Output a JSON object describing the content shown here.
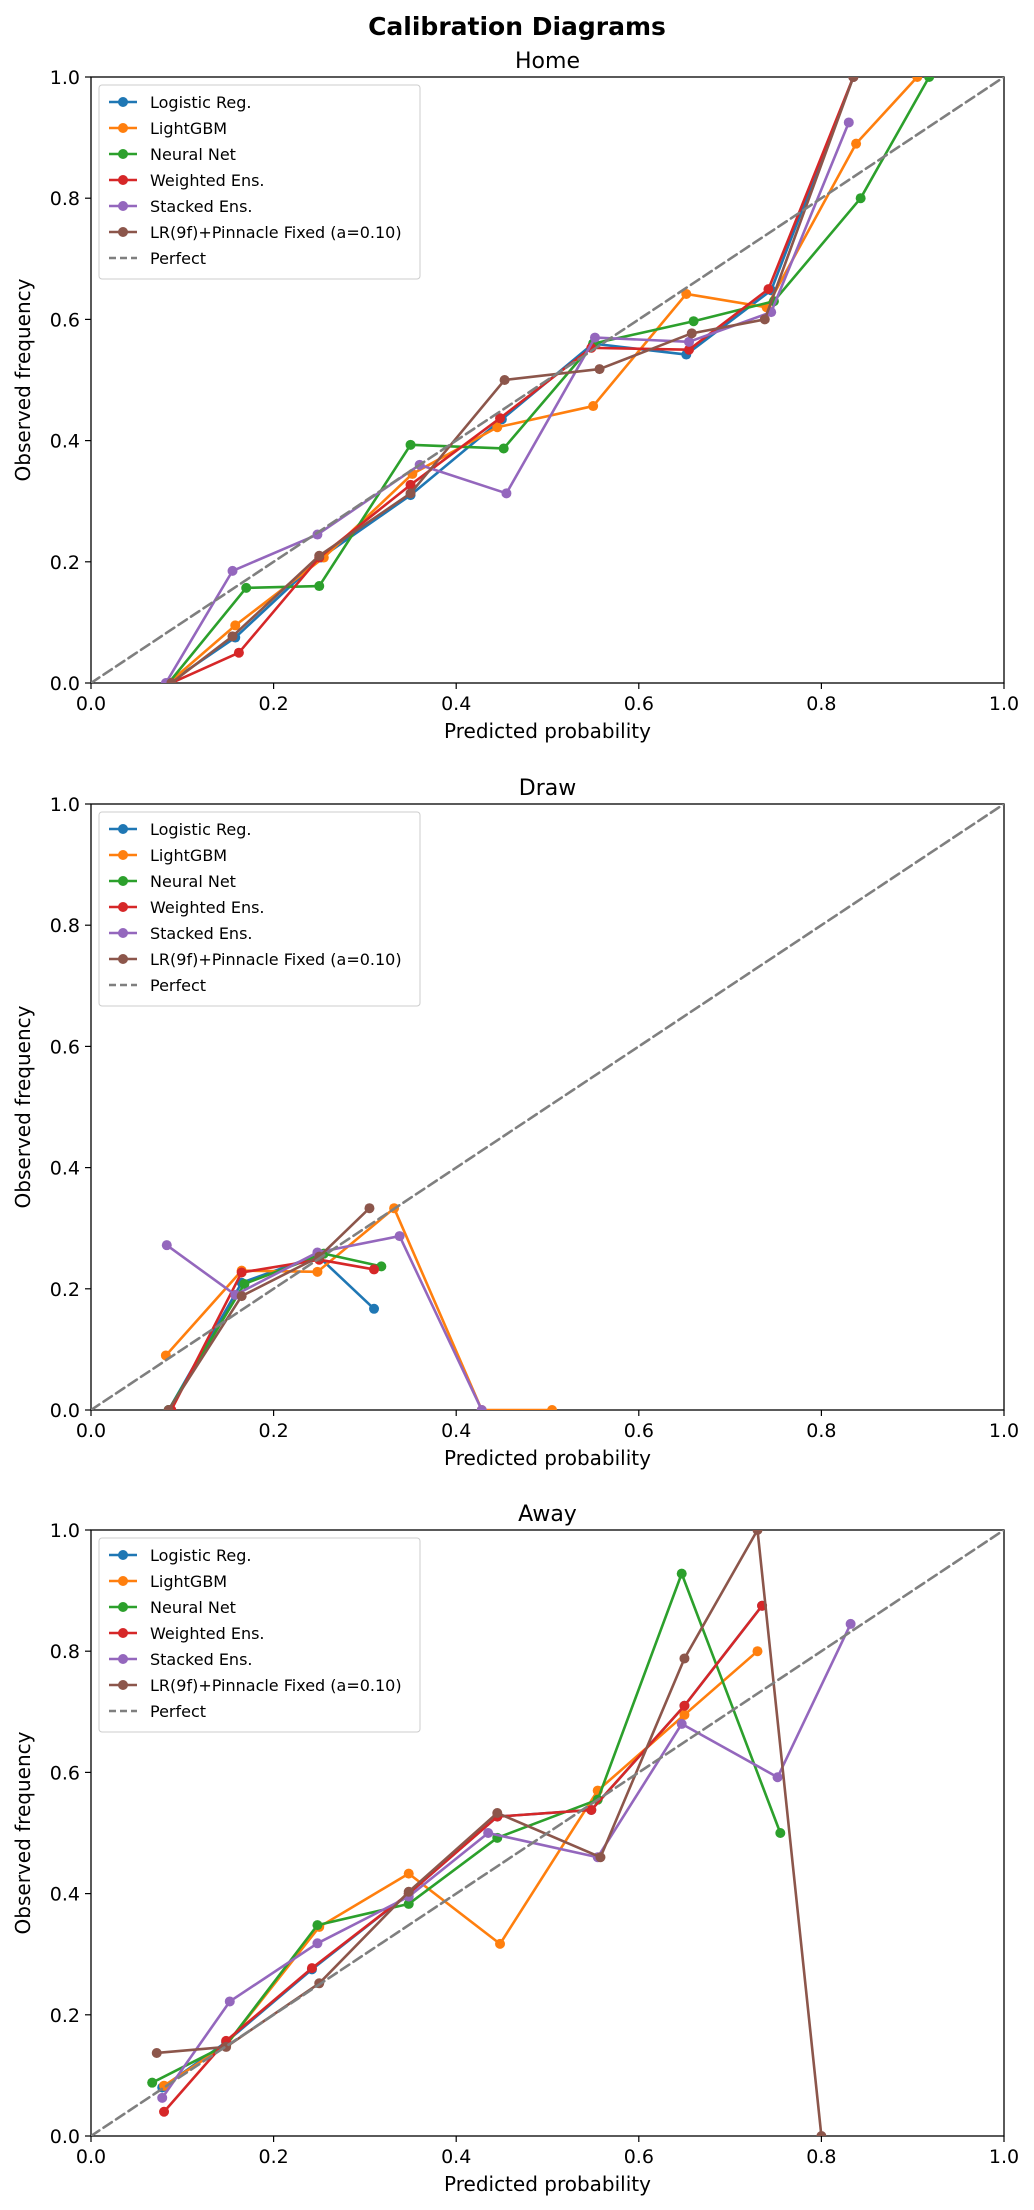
{
  "title": "Calibration Diagrams",
  "chart_data": [
    {
      "type": "line",
      "title": "Home",
      "xlabel": "Predicted probability",
      "ylabel": "Observed frequency",
      "xlim": [
        0,
        1
      ],
      "ylim": [
        0,
        1
      ],
      "xticks": [
        "0.0",
        "0.2",
        "0.4",
        "0.6",
        "0.8",
        "1.0"
      ],
      "yticks": [
        "0.0",
        "0.2",
        "0.4",
        "0.6",
        "0.8",
        "1.0"
      ],
      "grid": false,
      "legend_position": "upper-left",
      "series": [
        {
          "name": "Logistic Reg.",
          "color": "#1f77b4",
          "points": [
            [
              0.085,
              0.0
            ],
            [
              0.158,
              0.075
            ],
            [
              0.252,
              0.207
            ],
            [
              0.35,
              0.31
            ],
            [
              0.45,
              0.435
            ],
            [
              0.55,
              0.56
            ],
            [
              0.652,
              0.542
            ],
            [
              0.745,
              0.648
            ],
            [
              0.835,
              1.0
            ]
          ]
        },
        {
          "name": "LightGBM",
          "color": "#ff7f0e",
          "points": [
            [
              0.085,
              0.0
            ],
            [
              0.158,
              0.095
            ],
            [
              0.255,
              0.207
            ],
            [
              0.352,
              0.345
            ],
            [
              0.445,
              0.422
            ],
            [
              0.55,
              0.457
            ],
            [
              0.652,
              0.642
            ],
            [
              0.74,
              0.62
            ],
            [
              0.838,
              0.89
            ],
            [
              0.905,
              1.0
            ]
          ]
        },
        {
          "name": "Neural Net",
          "color": "#2ca02c",
          "points": [
            [
              0.085,
              0.0
            ],
            [
              0.17,
              0.157
            ],
            [
              0.25,
              0.16
            ],
            [
              0.35,
              0.393
            ],
            [
              0.452,
              0.387
            ],
            [
              0.55,
              0.56
            ],
            [
              0.66,
              0.597
            ],
            [
              0.748,
              0.63
            ],
            [
              0.843,
              0.8
            ],
            [
              0.918,
              1.0
            ]
          ]
        },
        {
          "name": "Weighted Ens.",
          "color": "#d62728",
          "points": [
            [
              0.088,
              0.0
            ],
            [
              0.162,
              0.05
            ],
            [
              0.25,
              0.207
            ],
            [
              0.35,
              0.327
            ],
            [
              0.448,
              0.437
            ],
            [
              0.548,
              0.553
            ],
            [
              0.655,
              0.55
            ],
            [
              0.742,
              0.65
            ],
            [
              0.835,
              1.0
            ]
          ]
        },
        {
          "name": "Stacked Ens.",
          "color": "#9467bd",
          "points": [
            [
              0.082,
              0.0
            ],
            [
              0.155,
              0.185
            ],
            [
              0.248,
              0.245
            ],
            [
              0.36,
              0.36
            ],
            [
              0.455,
              0.313
            ],
            [
              0.552,
              0.57
            ],
            [
              0.655,
              0.563
            ],
            [
              0.745,
              0.612
            ],
            [
              0.83,
              0.925
            ]
          ]
        },
        {
          "name": "LR(9f)+Pinnacle Fixed (a=0.10)",
          "color": "#8c564b",
          "points": [
            [
              0.088,
              0.0
            ],
            [
              0.155,
              0.077
            ],
            [
              0.25,
              0.21
            ],
            [
              0.35,
              0.313
            ],
            [
              0.453,
              0.5
            ],
            [
              0.557,
              0.518
            ],
            [
              0.658,
              0.577
            ],
            [
              0.738,
              0.6
            ],
            [
              0.835,
              1.0
            ]
          ]
        },
        {
          "name": "Perfect",
          "color": "#7f7f7f",
          "dashed": true,
          "markers": false,
          "points": [
            [
              0,
              0
            ],
            [
              1,
              1
            ]
          ]
        }
      ]
    },
    {
      "type": "line",
      "title": "Draw",
      "xlabel": "Predicted probability",
      "ylabel": "Observed frequency",
      "xlim": [
        0,
        1
      ],
      "ylim": [
        0,
        1
      ],
      "xticks": [
        "0.0",
        "0.2",
        "0.4",
        "0.6",
        "0.8",
        "1.0"
      ],
      "yticks": [
        "0.0",
        "0.2",
        "0.4",
        "0.6",
        "0.8",
        "1.0"
      ],
      "grid": false,
      "legend_position": "upper-left",
      "series": [
        {
          "name": "Logistic Reg.",
          "color": "#1f77b4",
          "points": [
            [
              0.085,
              0.0
            ],
            [
              0.165,
              0.21
            ],
            [
              0.248,
              0.255
            ],
            [
              0.31,
              0.167
            ]
          ]
        },
        {
          "name": "LightGBM",
          "color": "#ff7f0e",
          "points": [
            [
              0.082,
              0.09
            ],
            [
              0.165,
              0.23
            ],
            [
              0.248,
              0.228
            ],
            [
              0.332,
              0.333
            ],
            [
              0.428,
              0.0
            ],
            [
              0.505,
              0.0
            ]
          ]
        },
        {
          "name": "Neural Net",
          "color": "#2ca02c",
          "points": [
            [
              0.085,
              0.0
            ],
            [
              0.168,
              0.208
            ],
            [
              0.255,
              0.258
            ],
            [
              0.318,
              0.237
            ]
          ]
        },
        {
          "name": "Weighted Ens.",
          "color": "#d62728",
          "points": [
            [
              0.088,
              0.0
            ],
            [
              0.165,
              0.227
            ],
            [
              0.25,
              0.248
            ],
            [
              0.31,
              0.232
            ]
          ]
        },
        {
          "name": "Stacked Ens.",
          "color": "#9467bd",
          "points": [
            [
              0.083,
              0.272
            ],
            [
              0.158,
              0.19
            ],
            [
              0.248,
              0.26
            ],
            [
              0.338,
              0.287
            ],
            [
              0.428,
              0.0
            ]
          ]
        },
        {
          "name": "LR(9f)+Pinnacle Fixed (a=0.10)",
          "color": "#8c564b",
          "points": [
            [
              0.085,
              0.0
            ],
            [
              0.165,
              0.188
            ],
            [
              0.25,
              0.253
            ],
            [
              0.305,
              0.333
            ]
          ]
        },
        {
          "name": "Perfect",
          "color": "#7f7f7f",
          "dashed": true,
          "markers": false,
          "points": [
            [
              0,
              0
            ],
            [
              1,
              1
            ]
          ]
        }
      ]
    },
    {
      "type": "line",
      "title": "Away",
      "xlabel": "Predicted probability",
      "ylabel": "Observed frequency",
      "xlim": [
        0,
        1
      ],
      "ylim": [
        0,
        1
      ],
      "xticks": [
        "0.0",
        "0.2",
        "0.4",
        "0.6",
        "0.8",
        "1.0"
      ],
      "yticks": [
        "0.0",
        "0.2",
        "0.4",
        "0.6",
        "0.8",
        "1.0"
      ],
      "grid": false,
      "legend_position": "upper-left",
      "series": [
        {
          "name": "Logistic Reg.",
          "color": "#1f77b4",
          "points": [
            [
              0.078,
              0.08
            ],
            [
              0.148,
              0.155
            ],
            [
              0.242,
              0.275
            ],
            [
              0.348,
              0.4
            ],
            [
              0.445,
              0.527
            ],
            [
              0.548,
              0.538
            ],
            [
              0.65,
              0.71
            ],
            [
              0.735,
              0.875
            ]
          ]
        },
        {
          "name": "LightGBM",
          "color": "#ff7f0e",
          "points": [
            [
              0.08,
              0.083
            ],
            [
              0.148,
              0.15
            ],
            [
              0.25,
              0.345
            ],
            [
              0.348,
              0.433
            ],
            [
              0.448,
              0.317
            ],
            [
              0.555,
              0.57
            ],
            [
              0.65,
              0.695
            ],
            [
              0.73,
              0.8
            ]
          ]
        },
        {
          "name": "Neural Net",
          "color": "#2ca02c",
          "points": [
            [
              0.067,
              0.088
            ],
            [
              0.148,
              0.15
            ],
            [
              0.248,
              0.348
            ],
            [
              0.348,
              0.383
            ],
            [
              0.445,
              0.492
            ],
            [
              0.555,
              0.555
            ],
            [
              0.647,
              0.928
            ],
            [
              0.755,
              0.5
            ]
          ]
        },
        {
          "name": "Weighted Ens.",
          "color": "#d62728",
          "points": [
            [
              0.08,
              0.04
            ],
            [
              0.148,
              0.157
            ],
            [
              0.242,
              0.277
            ],
            [
              0.348,
              0.4
            ],
            [
              0.445,
              0.527
            ],
            [
              0.548,
              0.538
            ],
            [
              0.65,
              0.71
            ],
            [
              0.735,
              0.875
            ]
          ]
        },
        {
          "name": "Stacked Ens.",
          "color": "#9467bd",
          "points": [
            [
              0.078,
              0.063
            ],
            [
              0.152,
              0.222
            ],
            [
              0.248,
              0.318
            ],
            [
              0.348,
              0.395
            ],
            [
              0.435,
              0.5
            ],
            [
              0.555,
              0.46
            ],
            [
              0.647,
              0.68
            ],
            [
              0.752,
              0.592
            ],
            [
              0.832,
              0.845
            ]
          ]
        },
        {
          "name": "LR(9f)+Pinnacle Fixed (a=0.10)",
          "color": "#8c564b",
          "points": [
            [
              0.072,
              0.137
            ],
            [
              0.148,
              0.147
            ],
            [
              0.25,
              0.252
            ],
            [
              0.348,
              0.403
            ],
            [
              0.445,
              0.533
            ],
            [
              0.558,
              0.46
            ],
            [
              0.65,
              0.788
            ],
            [
              0.73,
              1.0
            ],
            [
              0.8,
              0.0
            ]
          ]
        },
        {
          "name": "Perfect",
          "color": "#7f7f7f",
          "dashed": true,
          "markers": false,
          "points": [
            [
              0,
              0
            ],
            [
              1,
              1
            ]
          ]
        }
      ]
    }
  ]
}
